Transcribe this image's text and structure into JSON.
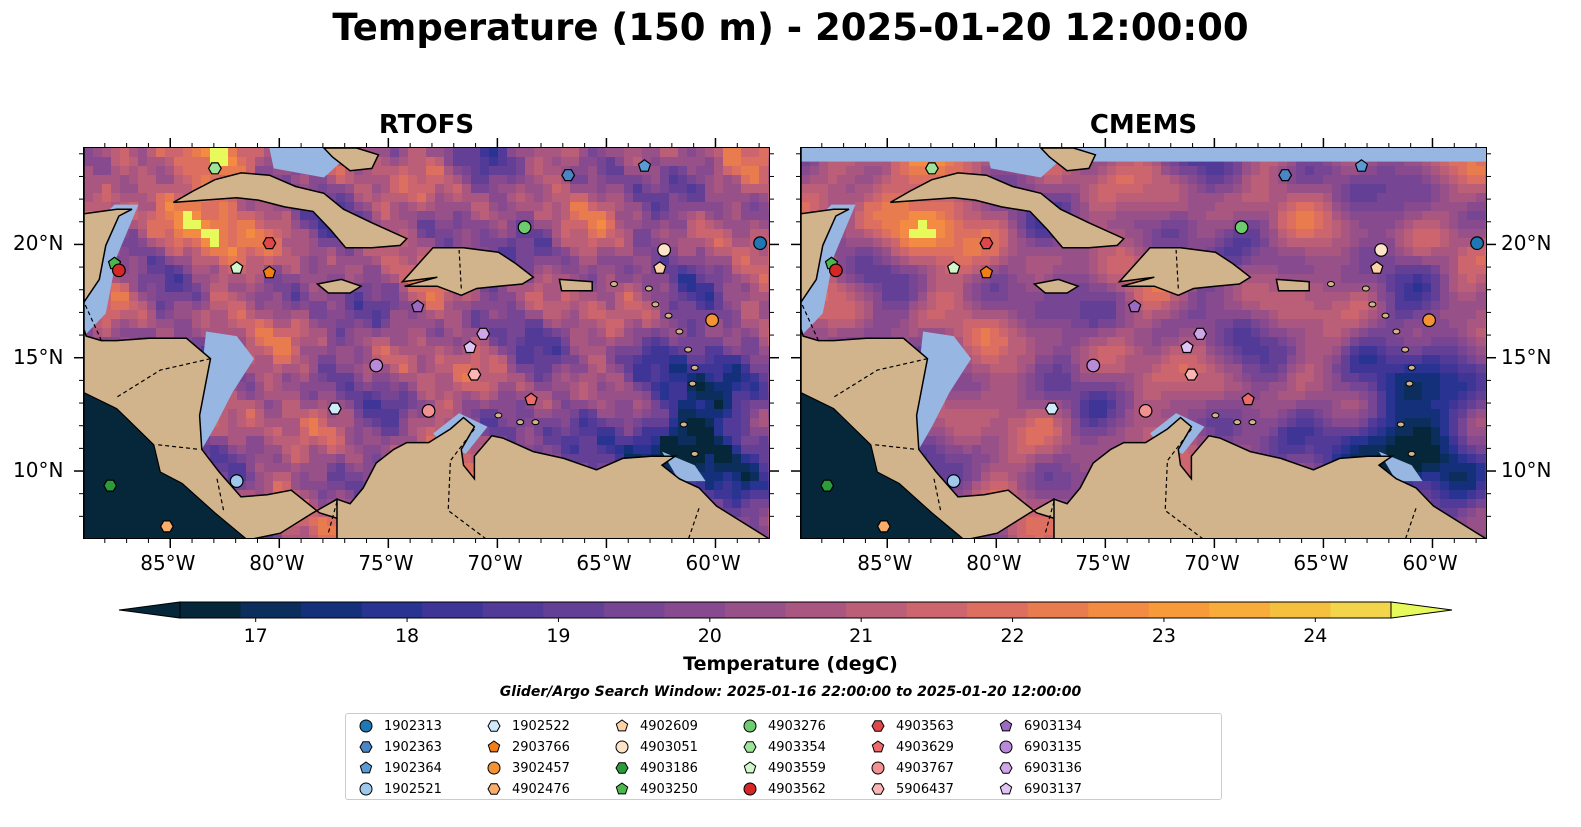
{
  "title": "Temperature (150 m) - 2025-01-20 12:00:00",
  "panels": [
    {
      "title": "RTOFS",
      "model": "rtofs"
    },
    {
      "title": "CMEMS",
      "model": "cmems"
    }
  ],
  "map": {
    "lon_range": [
      -89,
      -57.5
    ],
    "lat_range": [
      7,
      24.3
    ],
    "lon_ticks": [
      -85,
      -80,
      -75,
      -70,
      -65,
      -60
    ],
    "lon_tick_labels": [
      "85°W",
      "80°W",
      "75°W",
      "70°W",
      "65°W",
      "60°W"
    ],
    "lat_ticks": [
      10,
      15,
      20
    ],
    "lat_tick_labels": [
      "10°N",
      "15°N",
      "20°N"
    ],
    "land_color": "#d2b48c",
    "shelf_color": "#97b6e1",
    "deep_color": "#06263a"
  },
  "colorbar": {
    "label": "Temperature (degC)",
    "min": 16.5,
    "max": 24.5,
    "step": 0.5,
    "extend": "both",
    "ticks": [
      17,
      18,
      19,
      20,
      21,
      22,
      23,
      24
    ],
    "tick_labels": [
      "17",
      "18",
      "19",
      "20",
      "21",
      "22",
      "23",
      "24"
    ],
    "colors": [
      "#06263a",
      "#0b2e5d",
      "#15307a",
      "#293391",
      "#3e3597",
      "#523b98",
      "#643f96",
      "#764593",
      "#874a8f",
      "#985089",
      "#a95681",
      "#bb5e78",
      "#cc656d",
      "#dc6f5f",
      "#e97c4f",
      "#f38b42",
      "#f79a3a",
      "#f8ac3a",
      "#f6c03f",
      "#f2d54a"
    ],
    "over_color": "#e8fa5b",
    "under_color": "#06263a"
  },
  "search_window": "Glider/Argo Search Window: 2025-01-16 22:00:00 to 2025-01-20 12:00:00",
  "platforms": [
    {
      "id": "1902313",
      "marker": "circle",
      "color": "#1f77b4",
      "lon": -58.0,
      "lat": 20.1
    },
    {
      "id": "1902363",
      "marker": "hexagon",
      "color": "#4a86c5",
      "lon": -66.8,
      "lat": 23.1
    },
    {
      "id": "1902364",
      "marker": "pentagon",
      "color": "#5b9bd5",
      "lon": -63.3,
      "lat": 23.5
    },
    {
      "id": "1902521",
      "marker": "circle",
      "color": "#9ec8ec",
      "lon": -82.0,
      "lat": 9.6
    },
    {
      "id": "1902522",
      "marker": "hexagon",
      "color": "#cfeafa",
      "lon": -77.5,
      "lat": 12.8
    },
    {
      "id": "2903766",
      "marker": "pentagon",
      "color": "#f07f17",
      "lon": -80.5,
      "lat": 18.8
    },
    {
      "id": "3902457",
      "marker": "circle",
      "color": "#f39334",
      "lon": -60.2,
      "lat": 16.7
    },
    {
      "id": "4902476",
      "marker": "hexagon",
      "color": "#f8ad6a",
      "lon": -85.2,
      "lat": 7.6
    },
    {
      "id": "4902609",
      "marker": "pentagon",
      "color": "#fbd3a6",
      "lon": -62.6,
      "lat": 19.0
    },
    {
      "id": "4903051",
      "marker": "circle",
      "color": "#fde3c8",
      "lon": -62.4,
      "lat": 19.8
    },
    {
      "id": "4903186",
      "marker": "hexagon",
      "color": "#2a9d3a",
      "lon": -87.8,
      "lat": 9.4
    },
    {
      "id": "4903250",
      "marker": "pentagon",
      "color": "#4cb84c",
      "lon": -87.6,
      "lat": 19.2
    },
    {
      "id": "4903276",
      "marker": "circle",
      "color": "#6dcc6d",
      "lon": -68.8,
      "lat": 20.8
    },
    {
      "id": "4903354",
      "marker": "hexagon",
      "color": "#9fe39b",
      "lon": -83.0,
      "lat": 23.4
    },
    {
      "id": "4903559",
      "marker": "pentagon",
      "color": "#cff7c9",
      "lon": -82.0,
      "lat": 19.0
    },
    {
      "id": "4903562",
      "marker": "circle",
      "color": "#d62728",
      "lon": -87.4,
      "lat": 18.9
    },
    {
      "id": "4903563",
      "marker": "hexagon",
      "color": "#e0474a",
      "lon": -80.5,
      "lat": 20.1
    },
    {
      "id": "4903629",
      "marker": "pentagon",
      "color": "#ec6a6a",
      "lon": -68.5,
      "lat": 13.2
    },
    {
      "id": "4903767",
      "marker": "circle",
      "color": "#f29191",
      "lon": -73.2,
      "lat": 12.7
    },
    {
      "id": "5906437",
      "marker": "hexagon",
      "color": "#fab5b5",
      "lon": -71.1,
      "lat": 14.3
    },
    {
      "id": "6903134",
      "marker": "pentagon",
      "color": "#9a6bc0",
      "lon": -73.7,
      "lat": 17.3
    },
    {
      "id": "6903135",
      "marker": "circle",
      "color": "#b98ada",
      "lon": -75.6,
      "lat": 14.7
    },
    {
      "id": "6903136",
      "marker": "hexagon",
      "color": "#cfa7e8",
      "lon": -70.7,
      "lat": 16.1
    },
    {
      "id": "6903137",
      "marker": "pentagon",
      "color": "#e0c4f5",
      "lon": -71.3,
      "lat": 15.5
    }
  ]
}
